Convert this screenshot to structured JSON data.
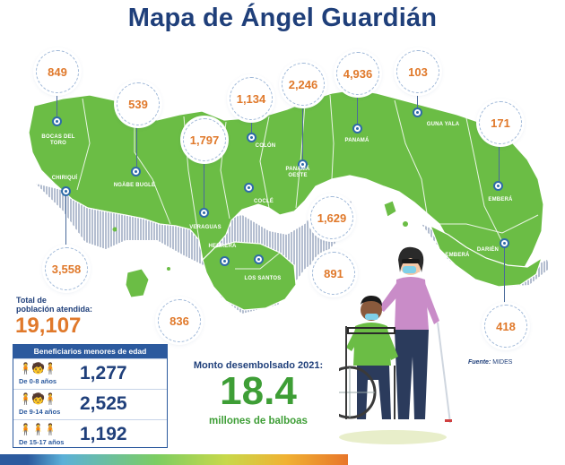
{
  "title": "Mapa de Ángel Guardián",
  "colors": {
    "land": "#6bbd45",
    "land_dark": "#4f9a30",
    "bubble_text": "#e0792b",
    "title": "#1f3f7a",
    "accent_green": "#3e9e36"
  },
  "regions": [
    {
      "name": "BOCAS DEL TORO",
      "value": "849"
    },
    {
      "name": "NGÄBE BUGLÉ",
      "value": "539"
    },
    {
      "name": "CHIRIQUÍ",
      "value": "3,558"
    },
    {
      "name": "VERAGUAS",
      "value": "1,797"
    },
    {
      "name": "COLÓN",
      "value": "1,134"
    },
    {
      "name": "PANAMÁ OESTE",
      "value": "2,246"
    },
    {
      "name": "PANAMÁ",
      "value": "4,936"
    },
    {
      "name": "GUNA YALA",
      "value": "103"
    },
    {
      "name": "EMBERÁ",
      "value": "171"
    },
    {
      "name": "COCLÉ",
      "value": "1,629"
    },
    {
      "name": "HERRERA",
      "value": "836"
    },
    {
      "name": "LOS SANTOS",
      "value": "891"
    },
    {
      "name": "DARIÉN",
      "value": "418"
    }
  ],
  "extra_label": "EMBERÁ",
  "total": {
    "label_line1": "Total de",
    "label_line2": "población atendida:",
    "value": "19,107"
  },
  "beneficiarios": {
    "header": "Beneficiarios menores de edad",
    "rows": [
      {
        "age": "De 0-8 años",
        "value": "1,277",
        "icon": "children-group-icon"
      },
      {
        "age": "De 9-14 años",
        "value": "2,525",
        "icon": "children-group-icon"
      },
      {
        "age": "De 15-17 años",
        "value": "1,192",
        "icon": "teens-group-icon"
      }
    ]
  },
  "monto": {
    "label": "Monto desembolsado 2021:",
    "value": "18.4",
    "unit": "millones de balboas"
  },
  "fuente": {
    "label": "Fuente:",
    "value": "MIDES"
  }
}
